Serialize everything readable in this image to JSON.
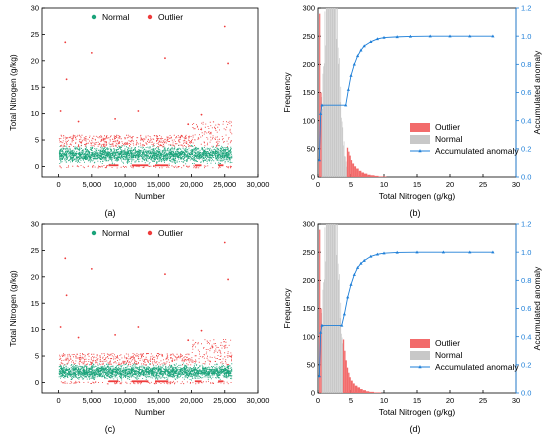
{
  "figure": {
    "captions": [
      "(a)",
      "(b)",
      "(c)",
      "(d)"
    ]
  },
  "colors": {
    "normal_scatter": "#1aa37a",
    "outlier": "#ee3b3b",
    "outlier_bar": "#f26b6b",
    "normal_bar": "#c8c8c8",
    "accumulated": "#1e7fd8"
  },
  "chart_data": [
    {
      "panel": "(a)",
      "type": "scatter",
      "xlabel": "Number",
      "ylabel": "Total Nitrogen (g/kg)",
      "xlim": [
        -2500,
        30000
      ],
      "ylim": [
        -2,
        30
      ],
      "xticks": [
        0,
        5000,
        10000,
        15000,
        20000,
        25000,
        30000
      ],
      "xtick_labels": [
        "0",
        "5,000",
        "10,000",
        "15,000",
        "20,000",
        "25,000",
        "30,000"
      ],
      "yticks": [
        0,
        5,
        10,
        15,
        20,
        25,
        30
      ],
      "ytick_labels": [
        "0",
        "5",
        "10",
        "15",
        "20",
        "25",
        "30"
      ],
      "legend": {
        "position": "top-center",
        "entries": [
          "Normal",
          "Outlier"
        ]
      },
      "series": [
        {
          "name": "Normal",
          "x_range": [
            0,
            26000
          ],
          "y_band": [
            0.3,
            3.8
          ],
          "count": 26000
        },
        {
          "name": "Outlier",
          "points": [
            [
              1000,
              23.5
            ],
            [
              1200,
              16.5
            ],
            [
              5000,
              21.5
            ],
            [
              16000,
              20.5
            ],
            [
              25000,
              26.5
            ],
            [
              25500,
              19.5
            ],
            [
              300,
              10.5
            ],
            [
              12000,
              10.5
            ],
            [
              21500,
              9.8
            ],
            [
              3000,
              8.5
            ],
            [
              8500,
              9.0
            ],
            [
              19500,
              8.0
            ]
          ]
        }
      ]
    },
    {
      "panel": "(b)",
      "type": "bar",
      "xlabel": "Total Nitrogen (g/kg)",
      "ylabel": "Frequency",
      "y2label": "Accumulated anomaly",
      "xlim": [
        0,
        30
      ],
      "ylim": [
        0,
        300
      ],
      "y2lim": [
        0,
        1.2
      ],
      "xticks": [
        0,
        5,
        10,
        15,
        20,
        25,
        30
      ],
      "xtick_labels": [
        "0",
        "5",
        "10",
        "15",
        "20",
        "25",
        "30"
      ],
      "yticks": [
        0,
        50,
        100,
        150,
        200,
        250,
        300
      ],
      "ytick_labels": [
        "0",
        "50",
        "100",
        "150",
        "200",
        "250",
        "300"
      ],
      "y2ticks": [
        0,
        0.2,
        0.4,
        0.6,
        0.8,
        1.0,
        1.2
      ],
      "y2tick_labels": [
        "0.0",
        "0.2",
        "0.4",
        "0.6",
        "0.8",
        "1.0",
        "1.2"
      ],
      "legend": {
        "position": "bottom-right",
        "entries": [
          "Outlier",
          "Normal",
          "Accumulated anomaly"
        ]
      },
      "series": [
        {
          "name": "Outlier",
          "x": [
            0.2,
            0.4,
            4.4,
            4.6,
            4.8,
            5.0,
            5.2,
            5.5,
            5.8,
            6.2,
            6.6,
            7.0,
            7.5,
            8.0,
            8.6,
            9.2,
            10.0
          ],
          "values": [
            290,
            150,
            52,
            45,
            38,
            30,
            24,
            19,
            15,
            11,
            8,
            6,
            4,
            3,
            2,
            1,
            1
          ]
        },
        {
          "name": "Normal",
          "x_range": [
            0.5,
            4.4
          ],
          "peak_x": 2.0,
          "peak_value": 300
        },
        {
          "name": "Accumulated anomaly",
          "x": [
            0.2,
            0.4,
            0.6,
            4.2,
            4.6,
            5.0,
            5.5,
            6.0,
            6.5,
            7.0,
            8.0,
            9.0,
            10.0,
            12.0,
            14.0,
            17.0,
            20.0,
            23.0,
            26.5
          ],
          "values": [
            0.12,
            0.45,
            0.51,
            0.51,
            0.62,
            0.72,
            0.8,
            0.86,
            0.9,
            0.93,
            0.96,
            0.98,
            0.99,
            0.995,
            0.998,
            1.0,
            1.0,
            1.0,
            1.0
          ]
        }
      ]
    },
    {
      "panel": "(c)",
      "type": "scatter",
      "xlabel": "Number",
      "ylabel": "Total Nitrogen (g/kg)",
      "xlim": [
        -2500,
        30000
      ],
      "ylim": [
        -2,
        30
      ],
      "xticks": [
        0,
        5000,
        10000,
        15000,
        20000,
        25000,
        30000
      ],
      "xtick_labels": [
        "0",
        "5,000",
        "10,000",
        "15,000",
        "20,000",
        "25,000",
        "30,000"
      ],
      "yticks": [
        0,
        5,
        10,
        15,
        20,
        25,
        30
      ],
      "ytick_labels": [
        "0",
        "5",
        "10",
        "15",
        "20",
        "25",
        "30"
      ],
      "legend": {
        "position": "top-center",
        "entries": [
          "Normal",
          "Outlier"
        ]
      },
      "series": [
        {
          "name": "Normal",
          "x_range": [
            0,
            26000
          ],
          "y_band": [
            0.3,
            3.4
          ],
          "count": 26000
        },
        {
          "name": "Outlier",
          "points": [
            [
              1000,
              23.5
            ],
            [
              1200,
              16.5
            ],
            [
              5000,
              21.5
            ],
            [
              16000,
              20.5
            ],
            [
              25000,
              26.5
            ],
            [
              25500,
              19.5
            ],
            [
              300,
              10.5
            ],
            [
              12000,
              10.5
            ],
            [
              21500,
              9.8
            ],
            [
              3000,
              8.5
            ],
            [
              8500,
              9.0
            ],
            [
              19500,
              8.0
            ]
          ]
        }
      ]
    },
    {
      "panel": "(d)",
      "type": "bar",
      "xlabel": "Total Nitrogen (g/kg)",
      "ylabel": "Frequency",
      "y2label": "Accumulated anomaly",
      "xlim": [
        0,
        30
      ],
      "ylim": [
        0,
        300
      ],
      "y2lim": [
        0,
        1.2
      ],
      "xticks": [
        0,
        5,
        10,
        15,
        20,
        25,
        30
      ],
      "xtick_labels": [
        "0",
        "5",
        "10",
        "15",
        "20",
        "25",
        "30"
      ],
      "yticks": [
        0,
        50,
        100,
        150,
        200,
        250,
        300
      ],
      "ytick_labels": [
        "0",
        "50",
        "100",
        "150",
        "200",
        "250",
        "300"
      ],
      "y2ticks": [
        0,
        0.2,
        0.4,
        0.6,
        0.8,
        1.0,
        1.2
      ],
      "y2tick_labels": [
        "0.0",
        "0.2",
        "0.4",
        "0.6",
        "0.8",
        "1.0",
        "1.2"
      ],
      "legend": {
        "position": "bottom-right",
        "entries": [
          "Outlier",
          "Normal",
          "Accumulated anomaly"
        ]
      },
      "series": [
        {
          "name": "Outlier",
          "x": [
            0.2,
            0.4,
            3.8,
            4.0,
            4.2,
            4.4,
            4.6,
            4.8,
            5.0,
            5.3,
            5.6,
            6.0,
            6.4,
            6.8,
            7.3,
            7.8,
            8.5,
            9.2
          ],
          "values": [
            290,
            150,
            95,
            75,
            58,
            45,
            36,
            28,
            22,
            17,
            13,
            10,
            7,
            5,
            3,
            2,
            1,
            1
          ]
        },
        {
          "name": "Normal",
          "x_range": [
            0.5,
            3.8
          ],
          "peak_x": 2.0,
          "peak_value": 300
        },
        {
          "name": "Accumulated anomaly",
          "x": [
            0.2,
            0.4,
            0.6,
            3.6,
            4.0,
            4.5,
            5.0,
            5.5,
            6.0,
            6.5,
            7.0,
            8.0,
            9.0,
            10.0,
            12.0,
            15.0,
            19.0,
            23.0,
            26.5
          ],
          "values": [
            0.12,
            0.43,
            0.48,
            0.48,
            0.56,
            0.68,
            0.77,
            0.84,
            0.89,
            0.92,
            0.94,
            0.97,
            0.985,
            0.993,
            0.998,
            1.0,
            1.0,
            1.0,
            1.0
          ]
        }
      ]
    }
  ]
}
